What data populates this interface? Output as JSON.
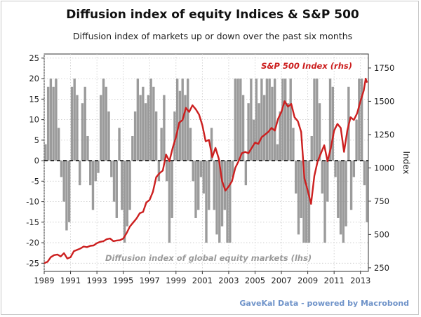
{
  "chart_data": {
    "type": "bar+line",
    "title": "Diffusion index of equity Indices & S&P 500",
    "subtitle": "Diffusion index of markets up or down over the past six months",
    "xlabel": "",
    "ylabel_left": "",
    "ylabel_right": "Index",
    "x_ticks": [
      "1989",
      "1991",
      "1993",
      "1995",
      "1997",
      "1999",
      "2001",
      "2003",
      "2005",
      "2007",
      "2009",
      "2011",
      "2013"
    ],
    "xlim": [
      1989,
      2013.6
    ],
    "y_left_ticks": [
      25,
      20,
      15,
      10,
      5,
      0,
      -5,
      -10,
      -15,
      -20,
      -25
    ],
    "ylim_left": [
      -27,
      26
    ],
    "y_right_ticks": [
      1750,
      1500,
      1250,
      1000,
      750,
      500,
      250
    ],
    "ylim_right": [
      223,
      1855
    ],
    "grid": true,
    "zero_line": "dashed",
    "source": "GaveKal Data - powered by Macrobond",
    "series": [
      {
        "name": "Diffusion index of global equity markets (lhs)",
        "axis": "left",
        "kind": "bar",
        "color": "#9b9b9b",
        "x": [
          1989.0,
          1989.2,
          1989.4,
          1989.6,
          1989.8,
          1990.0,
          1990.2,
          1990.4,
          1990.6,
          1990.8,
          1991.0,
          1991.2,
          1991.4,
          1991.6,
          1991.8,
          1992.0,
          1992.2,
          1992.4,
          1992.6,
          1992.8,
          1993.0,
          1993.2,
          1993.4,
          1993.6,
          1993.8,
          1994.0,
          1994.2,
          1994.4,
          1994.6,
          1994.8,
          1995.0,
          1995.2,
          1995.4,
          1995.6,
          1995.8,
          1996.0,
          1996.2,
          1996.4,
          1996.6,
          1996.8,
          1997.0,
          1997.2,
          1997.4,
          1997.6,
          1997.8,
          1998.0,
          1998.2,
          1998.4,
          1998.6,
          1998.8,
          1999.0,
          1999.2,
          1999.4,
          1999.6,
          1999.8,
          2000.0,
          2000.2,
          2000.4,
          2000.6,
          2000.8,
          2001.0,
          2001.2,
          2001.4,
          2001.6,
          2001.8,
          2002.0,
          2002.2,
          2002.4,
          2002.6,
          2002.8,
          2003.0,
          2003.2,
          2003.4,
          2003.6,
          2003.8,
          2004.0,
          2004.2,
          2004.4,
          2004.6,
          2004.8,
          2005.0,
          2005.2,
          2005.4,
          2005.6,
          2005.8,
          2006.0,
          2006.2,
          2006.4,
          2006.6,
          2006.8,
          2007.0,
          2007.2,
          2007.4,
          2007.6,
          2007.8,
          2008.0,
          2008.2,
          2008.4,
          2008.6,
          2008.8,
          2009.0,
          2009.2,
          2009.4,
          2009.6,
          2009.8,
          2010.0,
          2010.2,
          2010.4,
          2010.6,
          2010.8,
          2011.0,
          2011.2,
          2011.4,
          2011.6,
          2011.8,
          2012.0,
          2012.2,
          2012.4,
          2012.6,
          2012.8,
          2013.0,
          2013.2,
          2013.4
        ],
        "values": [
          4,
          18,
          20,
          18,
          20,
          8,
          -4,
          -10,
          -17,
          -15,
          18,
          20,
          16,
          -6,
          14,
          18,
          6,
          -6,
          -12,
          -5,
          -3,
          16,
          20,
          18,
          12,
          -4,
          -10,
          -14,
          8,
          -12,
          -20,
          -16,
          -12,
          6,
          12,
          20,
          16,
          18,
          14,
          16,
          20,
          18,
          12,
          -5,
          8,
          16,
          -5,
          -20,
          -14,
          12,
          20,
          17,
          20,
          16,
          20,
          8,
          -5,
          -14,
          -12,
          -4,
          -8,
          -20,
          -12,
          8,
          -12,
          -18,
          -20,
          -16,
          -12,
          -20,
          -20,
          -4,
          20,
          20,
          20,
          16,
          -6,
          14,
          20,
          10,
          20,
          14,
          20,
          16,
          20,
          20,
          18,
          20,
          4,
          12,
          20,
          20,
          14,
          20,
          8,
          -8,
          -18,
          -14,
          -20,
          -20,
          -20,
          6,
          20,
          20,
          14,
          -8,
          -20,
          -10,
          20,
          18,
          -4,
          -14,
          -18,
          -20,
          -16,
          18,
          -12,
          -4,
          10,
          20,
          20,
          -6,
          -15
        ]
      },
      {
        "name": "S&P 500 Index (rhs)",
        "axis": "right",
        "kind": "line",
        "color": "#cc1f1f",
        "x": [
          1989.0,
          1989.25,
          1989.5,
          1989.75,
          1990.0,
          1990.25,
          1990.5,
          1990.75,
          1991.0,
          1991.25,
          1991.5,
          1991.75,
          1992.0,
          1992.25,
          1992.5,
          1992.75,
          1993.0,
          1993.25,
          1993.5,
          1993.75,
          1994.0,
          1994.25,
          1994.5,
          1994.75,
          1995.0,
          1995.25,
          1995.5,
          1995.75,
          1996.0,
          1996.25,
          1996.5,
          1996.75,
          1997.0,
          1997.25,
          1997.5,
          1997.75,
          1998.0,
          1998.25,
          1998.5,
          1998.75,
          1999.0,
          1999.25,
          1999.5,
          1999.75,
          2000.0,
          2000.25,
          2000.5,
          2000.75,
          2001.0,
          2001.25,
          2001.5,
          2001.75,
          2002.0,
          2002.25,
          2002.5,
          2002.75,
          2003.0,
          2003.25,
          2003.5,
          2003.75,
          2004.0,
          2004.25,
          2004.5,
          2004.75,
          2005.0,
          2005.25,
          2005.5,
          2005.75,
          2006.0,
          2006.25,
          2006.5,
          2006.75,
          2007.0,
          2007.25,
          2007.5,
          2007.75,
          2008.0,
          2008.25,
          2008.5,
          2008.75,
          2009.0,
          2009.25,
          2009.5,
          2009.75,
          2010.0,
          2010.25,
          2010.5,
          2010.75,
          2011.0,
          2011.25,
          2011.5,
          2011.75,
          2012.0,
          2012.25,
          2012.5,
          2012.75,
          2013.0,
          2013.25,
          2013.4,
          2013.5
        ],
        "values": [
          285,
          295,
          330,
          345,
          350,
          335,
          360,
          320,
          330,
          375,
          385,
          395,
          410,
          405,
          415,
          418,
          435,
          445,
          450,
          465,
          470,
          450,
          455,
          458,
          470,
          510,
          560,
          590,
          620,
          660,
          670,
          740,
          760,
          820,
          930,
          960,
          980,
          1100,
          1050,
          1150,
          1230,
          1340,
          1360,
          1450,
          1420,
          1470,
          1440,
          1400,
          1320,
          1200,
          1210,
          1080,
          1150,
          1070,
          900,
          830,
          860,
          900,
          1000,
          1050,
          1110,
          1120,
          1110,
          1150,
          1190,
          1180,
          1230,
          1250,
          1270,
          1300,
          1280,
          1370,
          1420,
          1500,
          1460,
          1480,
          1380,
          1350,
          1270,
          920,
          830,
          730,
          940,
          1050,
          1110,
          1170,
          1050,
          1150,
          1280,
          1330,
          1300,
          1120,
          1280,
          1380,
          1360,
          1410,
          1500,
          1580,
          1670,
          1640
        ]
      }
    ]
  }
}
